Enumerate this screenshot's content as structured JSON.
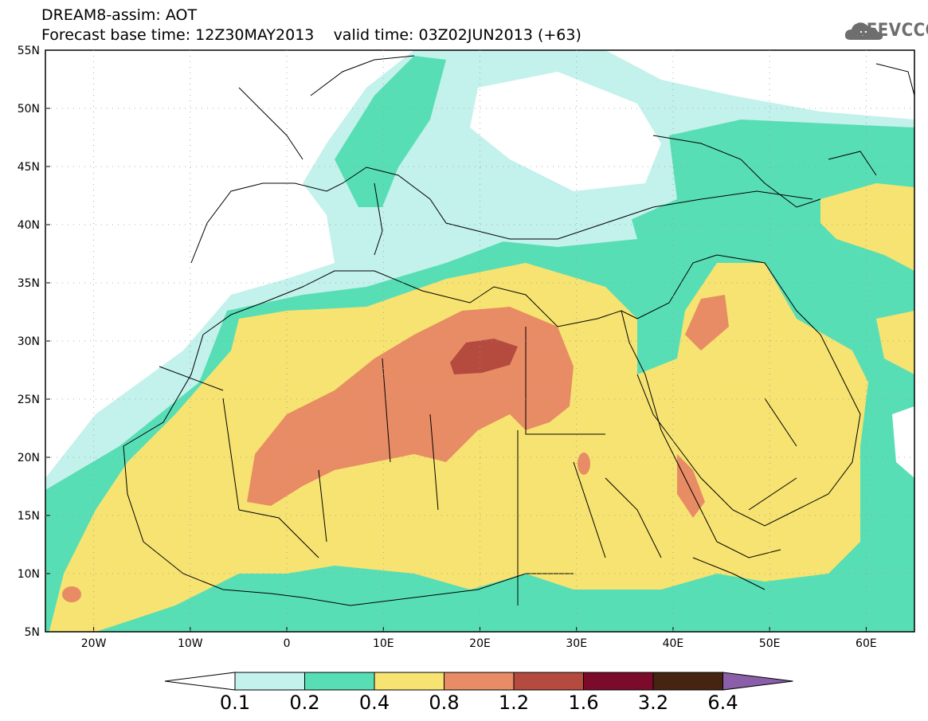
{
  "header": {
    "title": "DREAM8-assim: AOT",
    "base_time": "Forecast base time: 12Z30MAY2013",
    "valid_time": "valid time: 03Z02JUN2013 (+63)"
  },
  "logo": {
    "text": "SEEVCCC",
    "icon": "cloud-icon"
  },
  "map": {
    "lon_range": [
      -25,
      65
    ],
    "lat_range": [
      5,
      55
    ],
    "lat_labels": [
      "55N",
      "50N",
      "45N",
      "40N",
      "35N",
      "30N",
      "25N",
      "20N",
      "15N",
      "10N",
      "5N"
    ],
    "lon_labels": [
      "20W",
      "10W",
      "0",
      "10E",
      "20E",
      "30E",
      "40E",
      "50E",
      "60E"
    ],
    "background_color": "#ffffff"
  },
  "colorbar": {
    "labels": [
      "0.1",
      "0.2",
      "0.4",
      "0.8",
      "1.2",
      "1.6",
      "3.2",
      "6.4"
    ],
    "colors": [
      "#c3f1ec",
      "#58deb5",
      "#f6e371",
      "#e88c65",
      "#b44b3e",
      "#7b0a2b",
      "#452512",
      "#8a5ea8"
    ],
    "under_color": "#ffffff"
  }
}
